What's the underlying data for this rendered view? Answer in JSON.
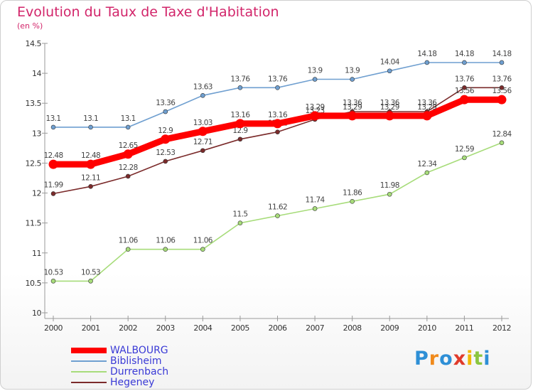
{
  "title": "Evolution du Taux de Taxe d'Habitation",
  "subtitle": "(en %)",
  "logo": {
    "text": "Proxiti",
    "letters": [
      "P",
      "r",
      "o",
      "x",
      "i",
      "t",
      "i"
    ],
    "colors": [
      "#2e8fd6",
      "#f08a1c",
      "#2e8fd6",
      "#e03a2a",
      "#f0b800",
      "#8cc63f",
      "#2e8fd6"
    ]
  },
  "chart_data": {
    "type": "line",
    "x": [
      "2000",
      "2001",
      "2002",
      "2003",
      "2004",
      "2005",
      "2006",
      "2007",
      "2008",
      "2009",
      "2010",
      "2011",
      "2012"
    ],
    "ylim": [
      10,
      14.5
    ],
    "yticks": [
      "10",
      "10.5",
      "11",
      "11.5",
      "12",
      "12.5",
      "13",
      "13.5",
      "14",
      "14.5"
    ],
    "grid": false,
    "legend_position": "bottom-left",
    "series": [
      {
        "name": "WALBOURG",
        "color": "#ff0000",
        "values": [
          12.48,
          12.48,
          12.65,
          12.9,
          13.03,
          13.16,
          13.16,
          13.29,
          13.29,
          13.29,
          13.29,
          13.56,
          13.56
        ]
      },
      {
        "name": "Biblisheim",
        "color": "#6f9fd0",
        "values": [
          13.1,
          13.1,
          13.1,
          13.36,
          13.63,
          13.76,
          13.76,
          13.9,
          13.9,
          14.04,
          14.18,
          14.18,
          14.18
        ]
      },
      {
        "name": "Durrenbach",
        "color": "#a7dc7a",
        "values": [
          10.53,
          10.53,
          11.06,
          11.06,
          11.06,
          11.5,
          11.62,
          11.74,
          11.86,
          11.98,
          12.34,
          12.59,
          12.84
        ]
      },
      {
        "name": "Hegeney",
        "color": "#7b2b2b",
        "values": [
          11.99,
          12.11,
          12.28,
          12.53,
          12.71,
          12.9,
          13.02,
          13.23,
          13.36,
          13.36,
          13.36,
          13.76,
          13.76
        ]
      }
    ]
  }
}
